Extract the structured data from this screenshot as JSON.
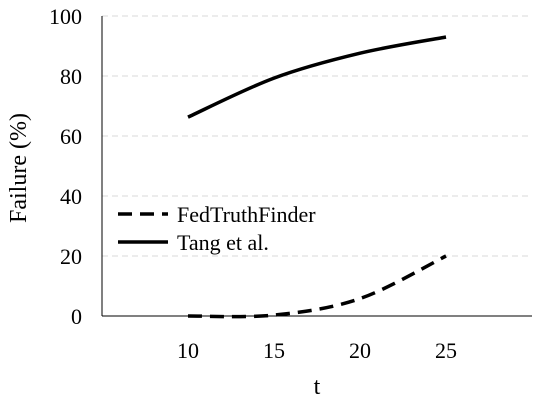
{
  "chart_data": {
    "type": "line",
    "title": "",
    "xlabel": "t",
    "ylabel": "Failure (%)",
    "x": [
      10,
      15,
      20,
      25
    ],
    "xlim": [
      5,
      30
    ],
    "ylim": [
      0,
      100
    ],
    "yticks": [
      0,
      20,
      40,
      60,
      80,
      100
    ],
    "xticks": [
      10,
      15,
      20,
      25
    ],
    "grid": "horizontal-dashed",
    "legend_position": "center-left",
    "series": [
      {
        "name": "FedTruthFinder",
        "style": "dashed",
        "color": "#000000",
        "values": [
          0,
          0.3,
          5.8,
          20
        ]
      },
      {
        "name": "Tang et al.",
        "style": "solid",
        "color": "#000000",
        "values": [
          66.3,
          79.3,
          87.6,
          93
        ]
      }
    ]
  }
}
